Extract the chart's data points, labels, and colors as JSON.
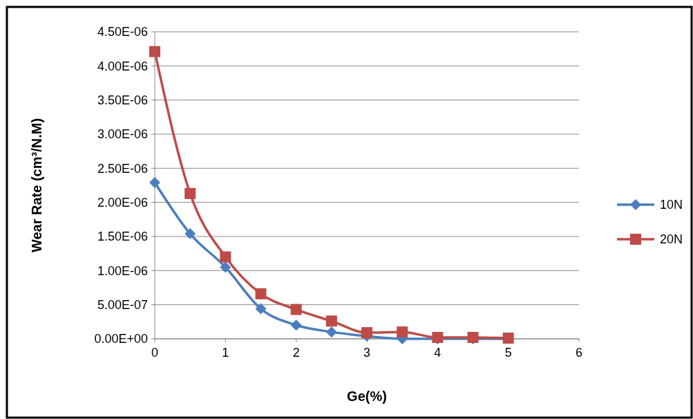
{
  "chart_data": {
    "type": "line",
    "xlabel": "Ge(%)",
    "ylabel": "Wear Rate (cm³/N.M)",
    "x": [
      0,
      0.5,
      1,
      1.5,
      2,
      2.5,
      3,
      3.5,
      4,
      4.5,
      5
    ],
    "series": [
      {
        "name": "10N",
        "color": "#4a7ebb",
        "marker": "diamond",
        "values": [
          2.29e-06,
          1.54e-06,
          1.05e-06,
          4.4e-07,
          2e-07,
          1e-07,
          4e-08,
          0,
          0,
          0,
          0
        ]
      },
      {
        "name": "20N",
        "color": "#be4b48",
        "marker": "square",
        "values": [
          4.21e-06,
          2.13e-06,
          1.2e-06,
          6.6e-07,
          4.3e-07,
          2.6e-07,
          9e-08,
          1e-07,
          2e-08,
          2e-08,
          1e-08
        ]
      }
    ],
    "xlim": [
      0,
      6
    ],
    "xticks": [
      0,
      1,
      2,
      3,
      4,
      5,
      6
    ],
    "ylim": [
      0,
      4.5e-06
    ],
    "yticks": [
      {
        "value": 0,
        "label": "0.00E+00"
      },
      {
        "value": 5e-07,
        "label": "5.00E-07"
      },
      {
        "value": 1e-06,
        "label": "1.00E-06"
      },
      {
        "value": 1.5e-06,
        "label": "1.50E-06"
      },
      {
        "value": 2e-06,
        "label": "2.00E-06"
      },
      {
        "value": 2.5e-06,
        "label": "2.50E-06"
      },
      {
        "value": 3e-06,
        "label": "3.00E-06"
      },
      {
        "value": 3.5e-06,
        "label": "3.50E-06"
      },
      {
        "value": 4e-06,
        "label": "4.00E-06"
      },
      {
        "value": 4.5e-06,
        "label": "4.50E-06"
      }
    ],
    "grid": "y",
    "legend": "right",
    "line_style": "solid"
  }
}
